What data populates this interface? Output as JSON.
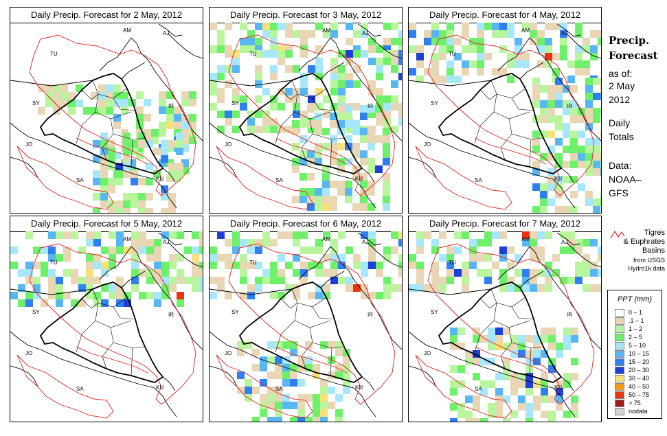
{
  "panels": [
    {
      "title": "Daily Precip. Forecast for  2 May, 2012",
      "wet": 1
    },
    {
      "title": "Daily Precip. Forecast for  3 May, 2012",
      "wet": 2
    },
    {
      "title": "Daily Precip. Forecast for  4 May, 2012",
      "wet": 3
    },
    {
      "title": "Daily Precip. Forecast for  5 May, 2012",
      "wet": 4
    },
    {
      "title": "Daily Precip. Forecast for  6 May, 2012",
      "wet": 5
    },
    {
      "title": "Daily Precip. Forecast for  7 May, 2012",
      "wet": 6
    }
  ],
  "country_labels": [
    "AM",
    "AJ",
    "TU",
    "SY",
    "IR",
    "JO",
    "SA",
    "KU"
  ],
  "sidebar": {
    "title_line1": "Precip.",
    "title_line2": "Forecast",
    "asof": "as of:",
    "date_line1": "2 May",
    "date_line2": "2012",
    "totals_line1": "Daily",
    "totals_line2": "Totals",
    "data_line1": "Data:",
    "data_line2": "NOAA–",
    "data_line3": "GFS"
  },
  "basin_key": {
    "label_line1": "Tigres",
    "label_line2": "& Euphrates",
    "label_line3": "Basins",
    "source_line1": "from USGS",
    "source_line2": "Hydro1k data",
    "color": "#e0201e"
  },
  "legend": {
    "title": "PPT (mm)",
    "items": [
      {
        "label": "0 – 1",
        "color": "#ffffff"
      },
      {
        "label": ".1 – 1",
        "color": "#e9d6b4"
      },
      {
        "label": "1 – 2",
        "color": "#b8f59c"
      },
      {
        "label": "2 – 5",
        "color": "#6ff06b"
      },
      {
        "label": "5 – 10",
        "color": "#a7e7fb"
      },
      {
        "label": "10 – 15",
        "color": "#58b6f2"
      },
      {
        "label": "15 – 20",
        "color": "#2f7ff0"
      },
      {
        "label": "20 – 30",
        "color": "#1e3fd6"
      },
      {
        "label": "30 – 40",
        "color": "#f6e27a"
      },
      {
        "label": "40 – 50",
        "color": "#f49a1a"
      },
      {
        "label": "50 – 75",
        "color": "#e8350f"
      },
      {
        "label": "> 75",
        "color": "#a01818"
      },
      {
        "label": "nodata",
        "color": "#d3d3d3"
      }
    ]
  }
}
